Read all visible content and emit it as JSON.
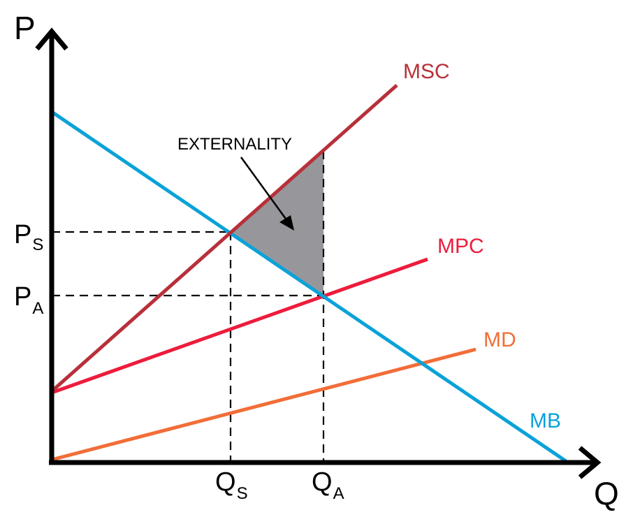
{
  "chart_data": {
    "type": "line",
    "axes": {
      "x_label": "Q",
      "y_label": "P"
    },
    "curves": [
      {
        "name": "MSC",
        "color": "#b7303a"
      },
      {
        "name": "MPC",
        "color": "#ed1c3c"
      },
      {
        "name": "MD",
        "color": "#f26d38"
      },
      {
        "name": "MB",
        "color": "#0aa2d8"
      }
    ],
    "price_ticks": [
      {
        "main": "P",
        "sub": "S"
      },
      {
        "main": "P",
        "sub": "A"
      }
    ],
    "quantity_ticks": [
      {
        "main": "Q",
        "sub": "S"
      },
      {
        "main": "Q",
        "sub": "A"
      }
    ],
    "shaded_region": {
      "label": "EXTERNALITY",
      "color": "#97969b"
    },
    "grid": false
  }
}
